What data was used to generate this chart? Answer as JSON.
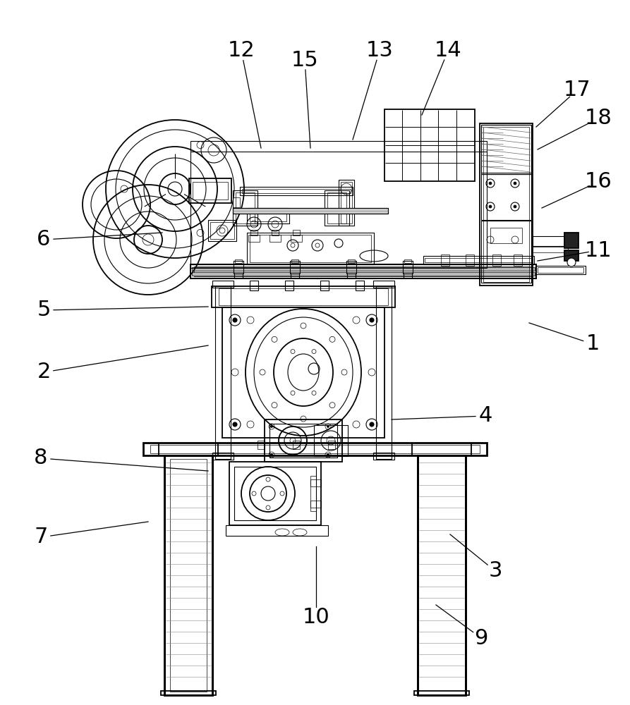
{
  "bg_color": "#ffffff",
  "line_color": "#000000",
  "label_fontsize": 22,
  "figsize": [
    8.93,
    10.0
  ],
  "dpi": 100,
  "annotations": [
    [
      1,
      840,
      488,
      750,
      458
    ],
    [
      2,
      62,
      528,
      295,
      490
    ],
    [
      3,
      702,
      810,
      638,
      758
    ],
    [
      4,
      688,
      590,
      555,
      595
    ],
    [
      5,
      62,
      440,
      295,
      435
    ],
    [
      6,
      62,
      340,
      230,
      330
    ],
    [
      7,
      58,
      762,
      210,
      740
    ],
    [
      8,
      58,
      650,
      295,
      668
    ],
    [
      9,
      682,
      905,
      618,
      858
    ],
    [
      10,
      448,
      875,
      448,
      775
    ],
    [
      11,
      848,
      355,
      762,
      370
    ],
    [
      12,
      342,
      72,
      370,
      210
    ],
    [
      13,
      538,
      72,
      500,
      198
    ],
    [
      14,
      635,
      72,
      598,
      163
    ],
    [
      15,
      432,
      85,
      440,
      210
    ],
    [
      16,
      848,
      258,
      768,
      295
    ],
    [
      17,
      818,
      128,
      760,
      180
    ],
    [
      18,
      848,
      168,
      762,
      212
    ]
  ]
}
